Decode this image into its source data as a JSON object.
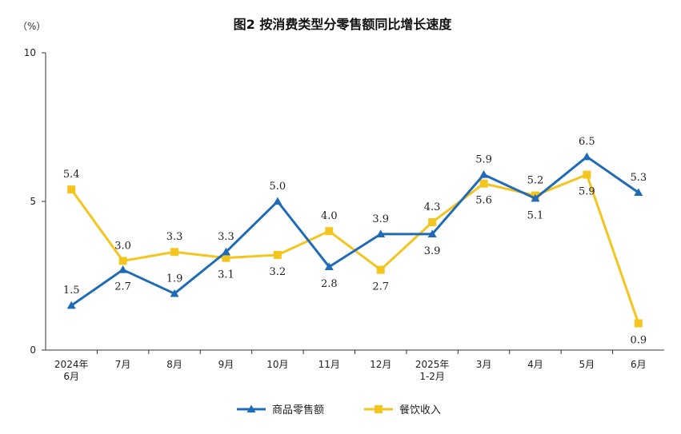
{
  "chart_data": {
    "type": "line",
    "title": "图2  按消费类型分零售额同比增长速度",
    "unit_label": "（%）",
    "ylim": [
      0,
      10
    ],
    "yticks": [
      "0",
      "5",
      "10"
    ],
    "categories": [
      [
        "2024年",
        "6月"
      ],
      [
        "7月"
      ],
      [
        "8月"
      ],
      [
        "9月"
      ],
      [
        "10月"
      ],
      [
        "11月"
      ],
      [
        "12月"
      ],
      [
        "2025年",
        "1-2月"
      ],
      [
        "3月"
      ],
      [
        "4月"
      ],
      [
        "5月"
      ],
      [
        "6月"
      ]
    ],
    "series": [
      {
        "name": "商品零售额",
        "color": "#1F6BB5",
        "marker": "triangle",
        "values": [
          1.5,
          2.7,
          1.9,
          3.3,
          5.0,
          2.8,
          3.9,
          3.9,
          5.9,
          5.1,
          6.5,
          5.3
        ],
        "labels": [
          "1.5",
          "2.7",
          "1.9",
          "3.3",
          "5.0",
          "2.8",
          "3.9",
          "3.9",
          "5.9",
          "5.1",
          "6.5",
          "5.3"
        ],
        "label_pos": [
          "above",
          "below",
          "above",
          "above",
          "above",
          "below",
          "above",
          "below",
          "above",
          "below",
          "above",
          "above"
        ]
      },
      {
        "name": "餐饮收入",
        "color": "#F4C51F",
        "marker": "square",
        "values": [
          5.4,
          3.0,
          3.3,
          3.1,
          3.2,
          4.0,
          2.7,
          4.3,
          5.6,
          5.2,
          5.9,
          0.9
        ],
        "labels": [
          "5.4",
          "3.0",
          "3.3",
          "3.1",
          "3.2",
          "4.0",
          "2.7",
          "4.3",
          "5.6",
          "5.2",
          "5.9",
          "0.9"
        ],
        "label_pos": [
          "above",
          "above",
          "above",
          "below",
          "below",
          "above",
          "below",
          "above",
          "below",
          "above",
          "below",
          "below"
        ]
      }
    ],
    "legend_position": "bottom-center",
    "grid": false
  }
}
